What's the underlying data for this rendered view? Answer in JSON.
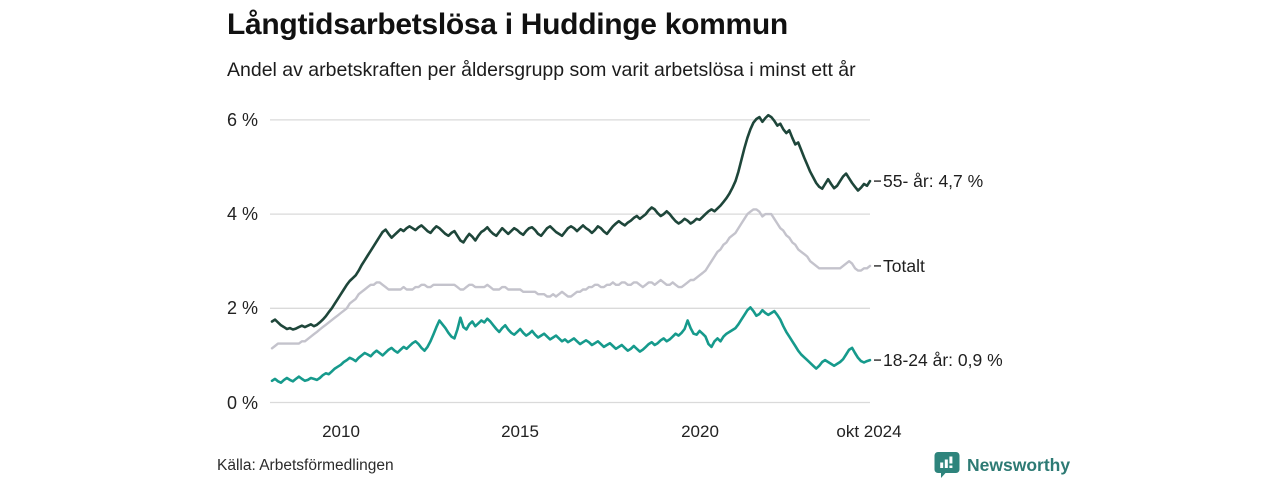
{
  "title": "Långtidsarbetslösa i Huddinge kommun",
  "subtitle": "Andel av arbetskraften per åldersgrupp som varit arbetslösa i minst ett år",
  "axis": {
    "y_ticks": [
      "6 %",
      "4 %",
      "2 %",
      "0 %"
    ],
    "x_ticks": [
      "2010",
      "2015",
      "2020",
      "okt 2024"
    ]
  },
  "end_labels": [
    {
      "id": "older55",
      "text": "55- år: 4,7 %"
    },
    {
      "id": "total",
      "text": "Totalt"
    },
    {
      "id": "young1824",
      "text": "18-24 år: 0,9 %"
    }
  ],
  "footer": {
    "source": "Källa: Arbetsförmedlingen",
    "brand": "Newsworthy"
  },
  "colors": {
    "line_55": "#1e463a",
    "line_total": "#c4c3cc",
    "line_1824": "#169a8c",
    "gridline": "#dadada",
    "end_tick": "#444444",
    "brand_teal": "#2d7a74"
  },
  "chart_data": {
    "type": "line",
    "title": "Långtidsarbetslösa i Huddinge kommun",
    "subtitle": "Andel av arbetskraften per åldersgrupp som varit arbetslösa i minst ett år",
    "unit": "% av arbetskraften",
    "x_start": "2008-02",
    "x_end": "2024-10",
    "x_interval": "monthly",
    "x_tick_labels": [
      "2010",
      "2015",
      "2020",
      "okt 2024"
    ],
    "ylim": [
      0,
      6.4
    ],
    "y_gridlines": [
      0,
      2,
      4,
      6
    ],
    "legend_position": "right-of-line-ends",
    "grid": "horizontal-only",
    "series": [
      {
        "name": "Totalt",
        "end_value_label": "Totalt",
        "last_value": 2.9,
        "color": "#c4c3cc",
        "width": 2.4,
        "values": [
          1.15,
          1.2,
          1.25,
          1.25,
          1.25,
          1.25,
          1.25,
          1.25,
          1.25,
          1.25,
          1.3,
          1.3,
          1.35,
          1.4,
          1.45,
          1.5,
          1.55,
          1.6,
          1.65,
          1.7,
          1.75,
          1.8,
          1.85,
          1.9,
          1.95,
          2.0,
          2.1,
          2.15,
          2.2,
          2.3,
          2.35,
          2.4,
          2.45,
          2.5,
          2.5,
          2.55,
          2.55,
          2.5,
          2.45,
          2.4,
          2.4,
          2.4,
          2.4,
          2.4,
          2.45,
          2.4,
          2.4,
          2.4,
          2.45,
          2.45,
          2.5,
          2.5,
          2.45,
          2.45,
          2.5,
          2.5,
          2.5,
          2.5,
          2.5,
          2.5,
          2.5,
          2.5,
          2.45,
          2.4,
          2.4,
          2.45,
          2.5,
          2.5,
          2.45,
          2.45,
          2.45,
          2.45,
          2.5,
          2.45,
          2.4,
          2.4,
          2.4,
          2.45,
          2.45,
          2.4,
          2.4,
          2.4,
          2.4,
          2.4,
          2.35,
          2.35,
          2.35,
          2.35,
          2.35,
          2.3,
          2.3,
          2.3,
          2.25,
          2.25,
          2.3,
          2.25,
          2.3,
          2.35,
          2.3,
          2.25,
          2.25,
          2.3,
          2.35,
          2.35,
          2.4,
          2.4,
          2.45,
          2.45,
          2.5,
          2.5,
          2.45,
          2.45,
          2.5,
          2.5,
          2.55,
          2.5,
          2.5,
          2.55,
          2.55,
          2.5,
          2.5,
          2.55,
          2.55,
          2.5,
          2.45,
          2.5,
          2.55,
          2.55,
          2.5,
          2.55,
          2.6,
          2.55,
          2.5,
          2.5,
          2.55,
          2.5,
          2.45,
          2.45,
          2.5,
          2.55,
          2.6,
          2.6,
          2.65,
          2.7,
          2.75,
          2.8,
          2.9,
          3.0,
          3.1,
          3.2,
          3.25,
          3.35,
          3.4,
          3.5,
          3.55,
          3.6,
          3.7,
          3.8,
          3.9,
          4.0,
          4.05,
          4.1,
          4.1,
          4.05,
          3.95,
          4.0,
          4.0,
          4.0,
          3.9,
          3.8,
          3.7,
          3.65,
          3.55,
          3.5,
          3.4,
          3.35,
          3.25,
          3.2,
          3.15,
          3.1,
          3.0,
          2.95,
          2.9,
          2.85,
          2.85,
          2.85,
          2.85,
          2.85,
          2.85,
          2.85,
          2.85,
          2.9,
          2.95,
          3.0,
          2.95,
          2.85,
          2.8,
          2.8,
          2.85,
          2.85,
          2.9
        ]
      },
      {
        "name": "18-24 år",
        "end_value_label": "18-24 år: 0,9 %",
        "last_value": 0.9,
        "color": "#169a8c",
        "width": 2.6,
        "values": [
          0.46,
          0.5,
          0.45,
          0.42,
          0.48,
          0.52,
          0.48,
          0.45,
          0.5,
          0.55,
          0.5,
          0.46,
          0.48,
          0.52,
          0.5,
          0.48,
          0.52,
          0.58,
          0.62,
          0.6,
          0.66,
          0.72,
          0.76,
          0.8,
          0.86,
          0.9,
          0.95,
          0.92,
          0.88,
          0.95,
          1.0,
          1.05,
          1.02,
          0.98,
          1.05,
          1.1,
          1.05,
          1.0,
          1.06,
          1.12,
          1.16,
          1.1,
          1.06,
          1.12,
          1.18,
          1.14,
          1.2,
          1.26,
          1.3,
          1.24,
          1.16,
          1.1,
          1.18,
          1.3,
          1.45,
          1.6,
          1.74,
          1.66,
          1.58,
          1.48,
          1.4,
          1.36,
          1.55,
          1.8,
          1.6,
          1.55,
          1.66,
          1.72,
          1.62,
          1.68,
          1.74,
          1.7,
          1.78,
          1.72,
          1.64,
          1.56,
          1.5,
          1.58,
          1.64,
          1.55,
          1.48,
          1.44,
          1.5,
          1.56,
          1.48,
          1.42,
          1.46,
          1.52,
          1.44,
          1.38,
          1.42,
          1.46,
          1.4,
          1.34,
          1.38,
          1.42,
          1.36,
          1.3,
          1.34,
          1.28,
          1.32,
          1.36,
          1.3,
          1.24,
          1.28,
          1.32,
          1.28,
          1.22,
          1.26,
          1.3,
          1.24,
          1.18,
          1.22,
          1.26,
          1.2,
          1.14,
          1.18,
          1.22,
          1.16,
          1.1,
          1.14,
          1.2,
          1.14,
          1.08,
          1.12,
          1.18,
          1.24,
          1.28,
          1.22,
          1.26,
          1.32,
          1.36,
          1.3,
          1.34,
          1.4,
          1.46,
          1.42,
          1.48,
          1.56,
          1.74,
          1.58,
          1.46,
          1.44,
          1.52,
          1.46,
          1.4,
          1.24,
          1.18,
          1.3,
          1.36,
          1.3,
          1.4,
          1.46,
          1.5,
          1.54,
          1.58,
          1.66,
          1.76,
          1.86,
          1.96,
          2.02,
          1.94,
          1.84,
          1.88,
          1.96,
          1.9,
          1.86,
          1.9,
          1.94,
          1.86,
          1.76,
          1.62,
          1.5,
          1.4,
          1.3,
          1.2,
          1.1,
          1.02,
          0.96,
          0.9,
          0.84,
          0.78,
          0.72,
          0.78,
          0.86,
          0.9,
          0.86,
          0.82,
          0.78,
          0.82,
          0.86,
          0.92,
          1.02,
          1.12,
          1.16,
          1.05,
          0.95,
          0.88,
          0.85,
          0.88,
          0.9
        ]
      },
      {
        "name": "55- år",
        "end_value_label": "55- år: 4,7 %",
        "last_value": 4.7,
        "color": "#1e463a",
        "width": 2.6,
        "values": [
          1.72,
          1.76,
          1.7,
          1.64,
          1.6,
          1.56,
          1.58,
          1.55,
          1.57,
          1.6,
          1.63,
          1.6,
          1.63,
          1.66,
          1.62,
          1.65,
          1.7,
          1.76,
          1.83,
          1.92,
          2.0,
          2.1,
          2.2,
          2.3,
          2.4,
          2.5,
          2.58,
          2.64,
          2.7,
          2.8,
          2.92,
          3.02,
          3.12,
          3.22,
          3.32,
          3.42,
          3.52,
          3.62,
          3.67,
          3.58,
          3.5,
          3.56,
          3.62,
          3.68,
          3.64,
          3.7,
          3.74,
          3.7,
          3.66,
          3.72,
          3.76,
          3.7,
          3.64,
          3.6,
          3.68,
          3.74,
          3.7,
          3.64,
          3.58,
          3.54,
          3.6,
          3.64,
          3.54,
          3.44,
          3.4,
          3.5,
          3.58,
          3.52,
          3.44,
          3.54,
          3.62,
          3.66,
          3.72,
          3.64,
          3.58,
          3.54,
          3.62,
          3.7,
          3.64,
          3.58,
          3.64,
          3.7,
          3.66,
          3.6,
          3.56,
          3.64,
          3.7,
          3.72,
          3.66,
          3.58,
          3.54,
          3.62,
          3.7,
          3.74,
          3.68,
          3.62,
          3.58,
          3.54,
          3.62,
          3.7,
          3.74,
          3.7,
          3.64,
          3.7,
          3.76,
          3.7,
          3.66,
          3.6,
          3.66,
          3.74,
          3.7,
          3.63,
          3.58,
          3.66,
          3.74,
          3.8,
          3.85,
          3.8,
          3.76,
          3.82,
          3.86,
          3.92,
          3.96,
          3.9,
          3.95,
          4.0,
          4.08,
          4.14,
          4.1,
          4.02,
          3.96,
          4.0,
          4.06,
          4.0,
          3.92,
          3.85,
          3.8,
          3.84,
          3.9,
          3.86,
          3.8,
          3.84,
          3.9,
          3.88,
          3.94,
          4.0,
          4.06,
          4.1,
          4.06,
          4.12,
          4.18,
          4.26,
          4.34,
          4.44,
          4.56,
          4.7,
          4.9,
          5.15,
          5.4,
          5.62,
          5.8,
          5.94,
          6.02,
          6.06,
          5.96,
          6.04,
          6.1,
          6.06,
          5.98,
          5.88,
          5.92,
          5.8,
          5.72,
          5.78,
          5.62,
          5.48,
          5.52,
          5.36,
          5.2,
          5.05,
          4.9,
          4.78,
          4.66,
          4.58,
          4.54,
          4.64,
          4.74,
          4.64,
          4.55,
          4.6,
          4.7,
          4.8,
          4.86,
          4.76,
          4.66,
          4.58,
          4.5,
          4.56,
          4.64,
          4.6,
          4.7
        ]
      }
    ]
  }
}
